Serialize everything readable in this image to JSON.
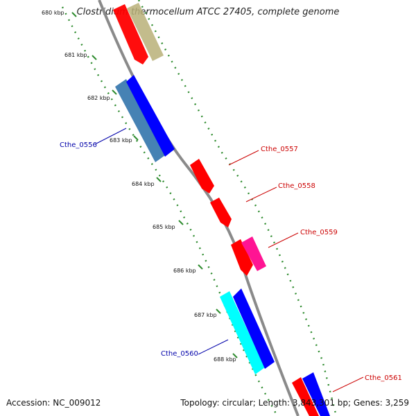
{
  "title": "Clostridium thermocellum ATCC 27405, complete genome",
  "accession": "Accession: NC_009012",
  "summary": "Topology: circular; Length: 3,843,301 bp; Genes: 3,259",
  "ticks": [
    "680 kbp",
    "681 kbp",
    "682 kbp",
    "683 kbp",
    "684 kbp",
    "685 kbp",
    "686 kbp",
    "687 kbp",
    "688 kbp"
  ],
  "gene_labels": [
    {
      "text": "Cthe_0556",
      "color": "#0000aa"
    },
    {
      "text": "Cthe_0557",
      "color": "#cc0000"
    },
    {
      "text": "Cthe_0558",
      "color": "#cc0000"
    },
    {
      "text": "Cthe_0559",
      "color": "#cc0000"
    },
    {
      "text": "Cthe_0560",
      "color": "#0000aa"
    },
    {
      "text": "Cthe_0561",
      "color": "#cc0000"
    }
  ],
  "colors": {
    "backbone": "#8a8a8a",
    "tick_track": "#2e8b2e",
    "forward_gene": "#ff0000",
    "reverse_gene": "#0000ff",
    "olive_feature": "#b8b078",
    "steelblue_feature": "#4682b4",
    "pink_feature": "#ff1493",
    "cyan_feature": "#00ffff"
  }
}
